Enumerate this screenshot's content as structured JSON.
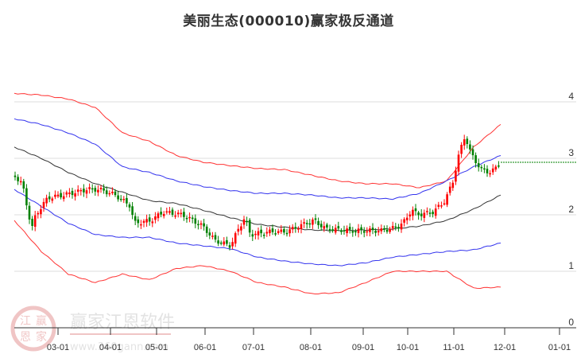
{
  "title": "美丽生态(000010)赢家极反通道",
  "watermark": {
    "brand": "赢家江恩软件",
    "url": "www.360gann.com",
    "logo_chars": [
      "江",
      "赢",
      "恩",
      "家"
    ]
  },
  "colors": {
    "up": "#ff0000",
    "down": "#008000",
    "outer_band": "#ff3333",
    "inner_band": "#3333ee",
    "mid_line": "#333333",
    "grid": "#dddddd",
    "last_price_line": "#008000"
  },
  "chart_data": {
    "type": "candlestick_with_channels",
    "title": "美丽生态(000010)赢家极反通道",
    "xlabel": "",
    "ylabel": "",
    "ylim": [
      0,
      4
    ],
    "y_ticks": [
      "0",
      "1",
      "2",
      "3",
      "4"
    ],
    "x_ticks": [
      "03-01",
      "04-01",
      "05-01",
      "06-01",
      "07-01",
      "08-01",
      "09-01",
      "10-01",
      "11-01",
      "12-01",
      "01-01"
    ],
    "grid": true,
    "last_price": 2.93,
    "series": [
      {
        "name": "outer_upper",
        "color": "#ff3333",
        "values": [
          4.15,
          4.12,
          4.05,
          3.9,
          3.45,
          3.3,
          3.05,
          2.93,
          2.87,
          2.82,
          2.8,
          2.7,
          2.6,
          2.55,
          2.55,
          2.48,
          2.6,
          3.2,
          3.6
        ]
      },
      {
        "name": "inner_upper",
        "color": "#3333ee",
        "values": [
          3.7,
          3.6,
          3.45,
          3.25,
          2.85,
          2.75,
          2.6,
          2.5,
          2.43,
          2.38,
          2.38,
          2.35,
          2.3,
          2.3,
          2.28,
          2.38,
          2.6,
          2.85,
          3.05
        ]
      },
      {
        "name": "middle",
        "color": "#333333",
        "values": [
          3.2,
          3.0,
          2.75,
          2.55,
          2.4,
          2.25,
          2.2,
          2.08,
          1.95,
          1.83,
          1.78,
          1.73,
          1.72,
          1.73,
          1.75,
          1.8,
          1.9,
          2.1,
          2.35
        ]
      },
      {
        "name": "inner_lower",
        "color": "#3333ee",
        "values": [
          2.45,
          2.15,
          1.85,
          1.65,
          1.6,
          1.6,
          1.5,
          1.45,
          1.4,
          1.25,
          1.18,
          1.13,
          1.1,
          1.15,
          1.25,
          1.3,
          1.35,
          1.38,
          1.5
        ]
      },
      {
        "name": "outer_lower",
        "color": "#ff3333",
        "values": [
          1.9,
          1.35,
          0.95,
          0.8,
          0.95,
          0.85,
          1.05,
          1.1,
          1.0,
          0.8,
          0.72,
          0.6,
          0.62,
          0.8,
          1.0,
          1.0,
          1.0,
          0.7,
          0.72
        ]
      }
    ],
    "band_x_months": [
      "02-15",
      "03-01",
      "03-15",
      "04-01",
      "04-15",
      "05-01",
      "05-15",
      "06-01",
      "06-15",
      "07-01",
      "07-15",
      "08-01",
      "08-15",
      "09-01",
      "09-15",
      "10-01",
      "10-15",
      "11-01",
      "11-28"
    ],
    "candles_summary": {
      "start": {
        "date": "02-15",
        "approx_close": 2.7
      },
      "low_march": 1.6,
      "april_range": [
        2.3,
        2.5
      ],
      "may_drop_to": 1.9,
      "june_low": 1.4,
      "july_spike_high": 2.0,
      "aug_sep_range": [
        1.65,
        1.85
      ],
      "oct_rise_to": 2.2,
      "nov_high": 3.65,
      "last_close": 2.93
    }
  }
}
